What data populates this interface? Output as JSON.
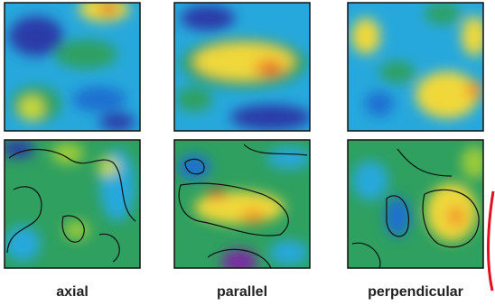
{
  "figure": {
    "labels": [
      "axial",
      "parallel",
      "perpendicular"
    ]
  }
}
